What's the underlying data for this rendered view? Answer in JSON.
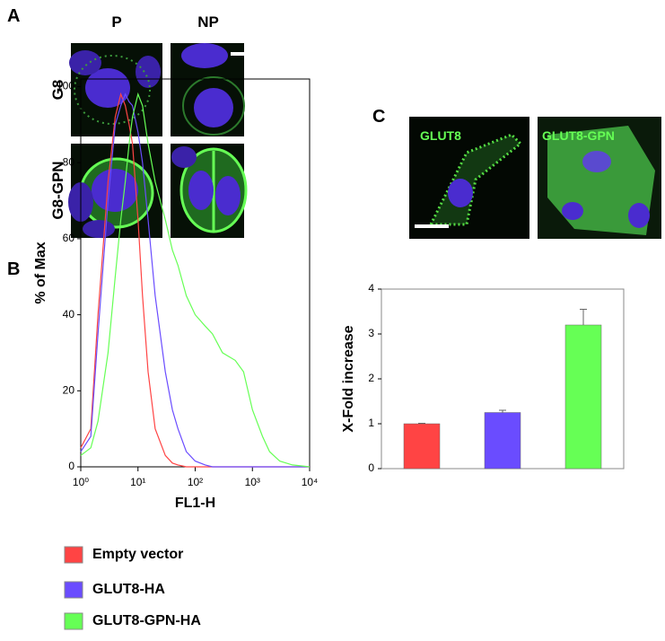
{
  "panels": {
    "A": {
      "label": "A",
      "columns": [
        "P",
        "NP"
      ],
      "rows": [
        "G8",
        "G8-GPN"
      ]
    },
    "B": {
      "label": "B"
    },
    "C": {
      "label": "C",
      "images": [
        "GLUT8",
        "GLUT8-GPN"
      ]
    }
  },
  "chart_data": [
    {
      "type": "line",
      "x_label": "FL1-H",
      "y_label": "% of Max",
      "log_x": true,
      "x": [
        1,
        1.5,
        2,
        3,
        4,
        5,
        6,
        7,
        8,
        10,
        12,
        15,
        20,
        30,
        40,
        50,
        70,
        100,
        150,
        200,
        300,
        500,
        700,
        1000,
        1500,
        2000,
        3000,
        5000,
        10000
      ],
      "series": [
        {
          "name": "Empty vector",
          "color": "#ff4444",
          "values": [
            5,
            10,
            40,
            75,
            92,
            98,
            95,
            90,
            85,
            65,
            45,
            25,
            10,
            3,
            1,
            0.5,
            0,
            0,
            0,
            0,
            0,
            0,
            0,
            0,
            0,
            0,
            0,
            0,
            0
          ]
        },
        {
          "name": "GLUT8-HA",
          "color": "#6a4cff",
          "values": [
            4,
            8,
            35,
            70,
            90,
            95,
            98,
            96,
            95,
            88,
            80,
            65,
            45,
            25,
            15,
            10,
            4,
            1.5,
            0.5,
            0,
            0,
            0,
            0,
            0,
            0,
            0,
            0,
            0,
            0
          ]
        },
        {
          "name": "GLUT8-GPN-HA",
          "color": "#66ff55",
          "values": [
            3,
            5,
            12,
            30,
            50,
            65,
            75,
            85,
            92,
            98,
            95,
            85,
            75,
            65,
            57,
            53,
            45,
            40,
            37,
            35,
            30,
            28,
            25,
            15,
            8,
            4,
            1.5,
            0.5,
            0
          ]
        }
      ],
      "xlim": [
        1,
        10000
      ],
      "xticks": [
        {
          "value": 1,
          "label": "10⁰"
        },
        {
          "value": 10,
          "label": "10¹"
        },
        {
          "value": 100,
          "label": "10²"
        },
        {
          "value": 1000,
          "label": "10³"
        },
        {
          "value": 10000,
          "label": "10⁴"
        }
      ],
      "ylim": [
        0,
        102
      ],
      "yticks": [
        0,
        20,
        40,
        60,
        80,
        100
      ]
    },
    {
      "type": "bar",
      "y_label": "X-Fold increase",
      "categories": [
        null,
        null,
        null
      ],
      "values": [
        1.0,
        1.25,
        3.2
      ],
      "errors": [
        0.01,
        0.05,
        0.35
      ],
      "colors": [
        "#ff4444",
        "#6a4cff",
        "#66ff55"
      ],
      "ylim": [
        0,
        4
      ],
      "yticks": [
        0,
        1,
        2,
        3,
        4
      ]
    }
  ]
}
